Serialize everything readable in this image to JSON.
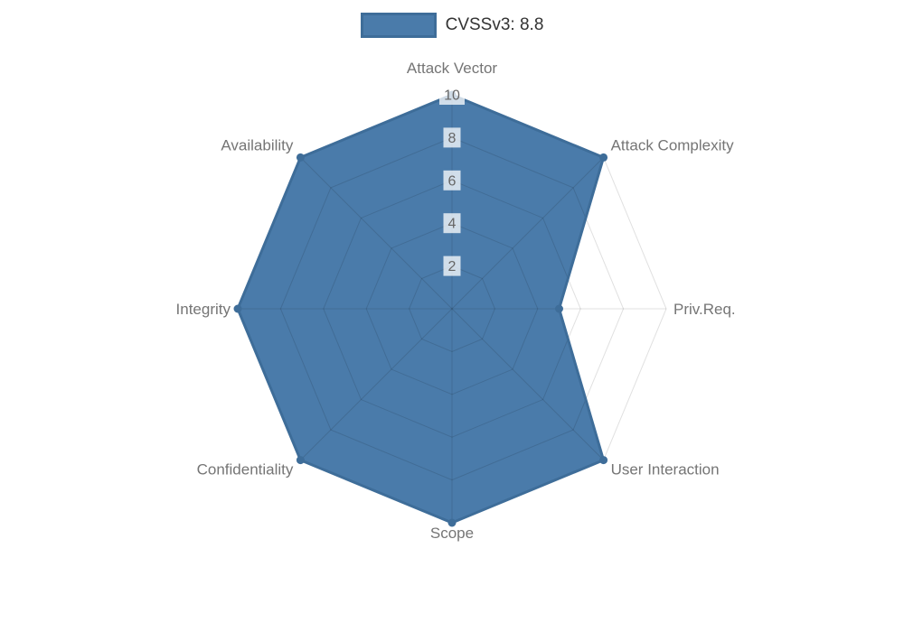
{
  "legend": {
    "label": "CVSSv3: 8.8"
  },
  "chart_data": {
    "type": "radar",
    "title": "CVSSv3: 8.8",
    "categories": [
      "Attack Vector",
      "Attack Complexity",
      "Priv.Req.",
      "User Interaction",
      "Scope",
      "Confidentiality",
      "Integrity",
      "Availability"
    ],
    "series": [
      {
        "name": "CVSSv3: 8.8",
        "values": [
          10,
          10,
          5,
          10,
          10,
          10,
          10,
          10
        ]
      }
    ],
    "scale": {
      "min": 0,
      "max": 10,
      "ticks": [
        2,
        4,
        6,
        8,
        10
      ]
    },
    "legend_position": "top",
    "grid": true,
    "colors": {
      "fill": "#4a7baa",
      "border": "#3e6d99",
      "point": "#3e6d99",
      "grid_line": "rgba(0,0,0,0.12)",
      "axis_label": "#757575",
      "tick_label": "#666666",
      "tick_backdrop": "rgba(255,255,255,0.75)",
      "legend_text": "#333333"
    }
  }
}
